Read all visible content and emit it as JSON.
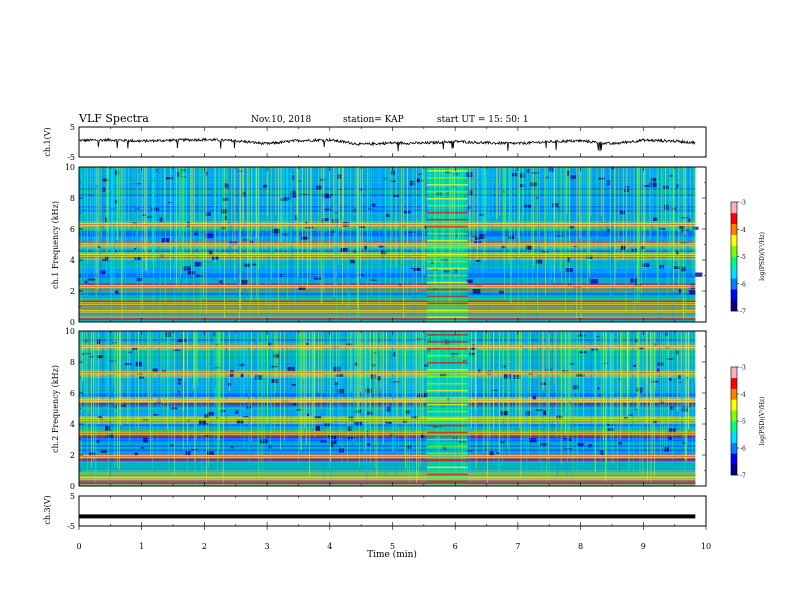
{
  "header": {
    "title": "VLF Spectra",
    "date": "Nov.10, 2018",
    "station": "station= KAP",
    "start": "start  UT =   15: 50: 1"
  },
  "chart_data": [
    {
      "type": "line",
      "panel": "ch1-waveform",
      "ylabel": "ch.1(V)",
      "ylim": [
        -5,
        5
      ],
      "yticks": [
        "5",
        "-5"
      ],
      "xlim": [
        0,
        10
      ],
      "series": [
        {
          "x": [
            0,
            0.5,
            1,
            1.5,
            2,
            2.5,
            3,
            3.5,
            4,
            4.5,
            5,
            5.5,
            6,
            6.5,
            7,
            7.5,
            8,
            8.5,
            9,
            9.5,
            9.83
          ],
          "values": [
            0.5,
            0.7,
            0.3,
            0.6,
            0.8,
            0.4,
            -0.6,
            0.5,
            0.7,
            -0.8,
            -0.3,
            -0.4,
            0.2,
            -0.3,
            -0.5,
            0.1,
            0.4,
            -0.6,
            0.6,
            0.3,
            -0.2
          ]
        }
      ],
      "color": "#000000"
    },
    {
      "type": "heatmap",
      "panel": "ch1-spectrogram",
      "ylabel": "ch.1  Frequency (kHz)",
      "ylim": [
        0,
        10
      ],
      "yticks": [
        "0",
        "2",
        "4",
        "6",
        "8",
        "10"
      ],
      "xlim": [
        0,
        10
      ],
      "data_end_min": 9.83,
      "colorbar": {
        "label": "log(PSD)(V²/Hz)",
        "range": [
          -7,
          -3
        ],
        "ticks": [
          "-3",
          "-4",
          "-5",
          "-6",
          "-7"
        ]
      },
      "bands_khz": [
        0.7,
        1.2,
        2.3,
        4.3,
        5.0,
        6.3
      ],
      "burst_min": [
        5.55,
        6.2
      ]
    },
    {
      "type": "heatmap",
      "panel": "ch2-spectrogram",
      "ylabel": "ch.2  Frequency (kHz)",
      "ylim": [
        0,
        10
      ],
      "yticks": [
        "0",
        "2",
        "4",
        "6",
        "8",
        "10"
      ],
      "xlim": [
        0,
        10
      ],
      "data_end_min": 9.83,
      "colorbar": {
        "label": "log(PSD)(V²/Hz)",
        "range": [
          -7,
          -3
        ],
        "ticks": [
          "-3",
          "-4",
          "-5",
          "-6",
          "-7"
        ]
      },
      "bands_khz": [
        0.5,
        1.9,
        3.4,
        4.3,
        5.5,
        7.3,
        9.0
      ],
      "burst_min": [
        5.55,
        6.2
      ]
    },
    {
      "type": "line",
      "panel": "ch3-waveform",
      "ylabel": "ch.3(V)",
      "ylim": [
        -5,
        5
      ],
      "yticks": [
        "5",
        "-5"
      ],
      "xlim": [
        0,
        10
      ],
      "xlabel": "Time  (min)",
      "xticks": [
        "0",
        "1",
        "2",
        "3",
        "4",
        "5",
        "6",
        "7",
        "8",
        "9",
        "10"
      ],
      "series": [
        {
          "x": [
            0,
            9.83
          ],
          "values": [
            -1.8,
            -1.8
          ]
        }
      ],
      "color": "#000000"
    }
  ],
  "colormap": [
    "#000080",
    "#0000ff",
    "#0080ff",
    "#00e0ff",
    "#00ff80",
    "#80ff00",
    "#ffff00",
    "#ff8000",
    "#ff0000",
    "#ffb0c0"
  ]
}
